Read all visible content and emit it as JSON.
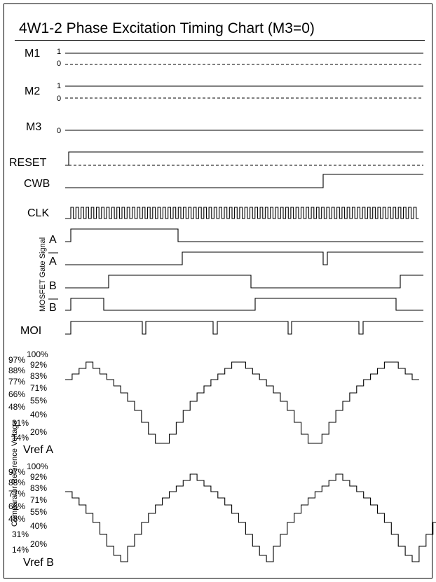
{
  "title": "4W1-2 Phase Excitation Timing Chart (M3=0)",
  "signals": {
    "m1": {
      "label": "M1",
      "high": "1",
      "low": "0"
    },
    "m2": {
      "label": "M2",
      "high": "1",
      "low": "0"
    },
    "m3": {
      "label": "M3",
      "low": "0"
    },
    "reset": {
      "label": "RESET"
    },
    "cwb": {
      "label": "CWB"
    },
    "clk": {
      "label": "CLK"
    },
    "a": {
      "label": "A"
    },
    "a_bar": {
      "label": "A"
    },
    "b": {
      "label": "B"
    },
    "b_bar": {
      "label": "B"
    },
    "moi": {
      "label": "MOI"
    }
  },
  "gate_group_label": "MOSFET Gate Signal",
  "vref_group_label": "Comparator Reference Voltage",
  "vref_a": {
    "label": "Vref A",
    "levels_left": [
      "97%",
      "88%",
      "77%",
      "66%",
      "48%",
      "31%",
      "14%"
    ],
    "levels_right": [
      "100%",
      "92%",
      "83%",
      "71%",
      "55%",
      "40%",
      "20%"
    ]
  },
  "vref_b": {
    "label": "Vref B",
    "levels_left": [
      "97%",
      "88%",
      "77%",
      "66%",
      "48%",
      "31%",
      "14%"
    ],
    "levels_right": [
      "100%",
      "92%",
      "83%",
      "71%",
      "55%",
      "40%",
      "20%"
    ]
  }
}
